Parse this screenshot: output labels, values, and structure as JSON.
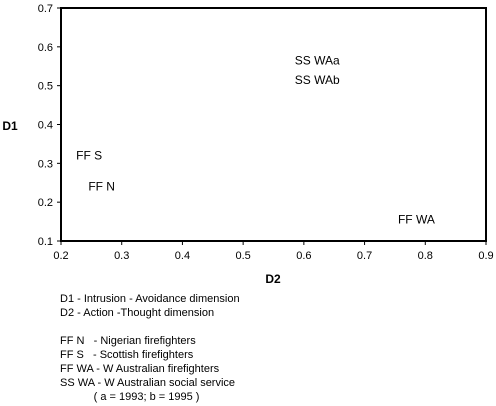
{
  "chart_data": {
    "type": "scatter",
    "xlabel": "D2",
    "ylabel": "D1",
    "xlim": [
      0.2,
      0.9
    ],
    "ylim": [
      0.1,
      0.7
    ],
    "x_ticks": [
      "0.2",
      "0.3",
      "0.4",
      "0.5",
      "0.6",
      "0.7",
      "0.8",
      "0.9"
    ],
    "y_ticks": [
      "0.1",
      "0.2",
      "0.3",
      "0.4",
      "0.5",
      "0.6",
      "0.7"
    ],
    "grid": false,
    "points": [
      {
        "label": "SS WAa",
        "x": 0.585,
        "y": 0.565
      },
      {
        "label": "SS WAb",
        "x": 0.585,
        "y": 0.515
      },
      {
        "label": "FF S",
        "x": 0.225,
        "y": 0.32
      },
      {
        "label": "FF N",
        "x": 0.245,
        "y": 0.24
      },
      {
        "label": "FF WA",
        "x": 0.755,
        "y": 0.155
      }
    ]
  },
  "legend": {
    "dimensions": [
      "D1 - Intrusion - Avoidance dimension",
      "D2 - Action -Thought dimension"
    ],
    "groups": [
      "FF N   - Nigerian firefighters",
      "FF S   - Scottish firefighters",
      "FF WA - W Australian firefighters",
      "SS WA - W Australian social service",
      "           ( a = 1993; b = 1995 )"
    ]
  }
}
